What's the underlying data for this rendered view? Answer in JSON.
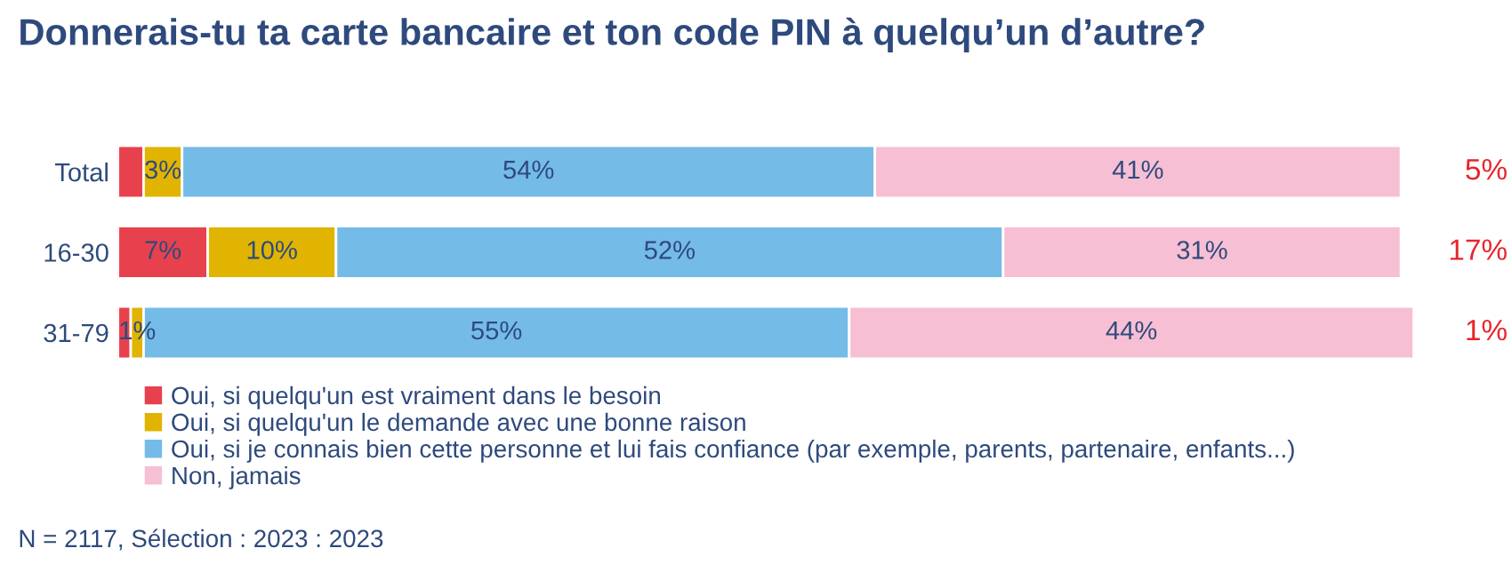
{
  "chart_data": {
    "type": "bar",
    "orientation": "horizontal",
    "stacked": true,
    "title": "Donnerais-tu ta carte bancaire et ton code PIN à quelqu’un d’autre?",
    "categories": [
      "Total",
      "16-30",
      "31-79"
    ],
    "series": [
      {
        "name": "Oui, si quelqu'un est vraiment dans le besoin",
        "color": "#e8414e",
        "values": [
          2,
          7,
          1
        ],
        "value_labels": [
          null,
          "7%",
          null
        ]
      },
      {
        "name": "Oui, si quelqu'un le demande avec une bonne raison",
        "color": "#e0b400",
        "values": [
          3,
          10,
          1
        ],
        "value_labels": [
          "3%",
          "10%",
          "1%"
        ]
      },
      {
        "name": "Oui, si je connais bien cette personne et lui fais confiance (par exemple, parents, partenaire, enfants...)",
        "color": "#74bbe8",
        "values": [
          54,
          52,
          55
        ],
        "value_labels": [
          "54%",
          "52%",
          "55%"
        ]
      },
      {
        "name": "Non, jamais",
        "color": "#f7bfd3",
        "values": [
          41,
          31,
          44
        ],
        "value_labels": [
          "41%",
          "31%",
          "44%"
        ]
      }
    ],
    "xlim": [
      0,
      101
    ],
    "tick_labels": "y",
    "legend": "bottom left",
    "annotations": [
      "5%",
      "17%",
      "1%",
      "N = 2117, Sélection : 2023 : 2023"
    ]
  }
}
